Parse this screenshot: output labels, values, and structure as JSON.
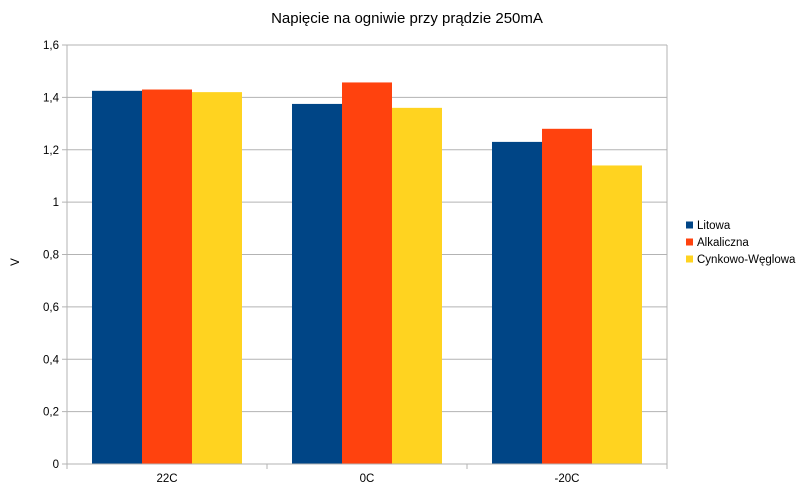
{
  "chart_data": {
    "type": "bar",
    "title": "Napięcie na ogniwie przy prądzie 250mA",
    "xlabel": "",
    "ylabel": "V",
    "categories": [
      "22C",
      "0C",
      "-20C"
    ],
    "series": [
      {
        "name": "Litowa",
        "color": "#004586",
        "values": [
          1.425,
          1.375,
          1.23
        ]
      },
      {
        "name": "Alkaliczna",
        "color": "#ff420e",
        "values": [
          1.43,
          1.457,
          1.28
        ]
      },
      {
        "name": "Cynkowo-Węglowa",
        "color": "#ffd320",
        "values": [
          1.42,
          1.36,
          1.14
        ]
      }
    ],
    "ylim": [
      0,
      1.6
    ],
    "yticks": [
      "0",
      "0,2",
      "0,4",
      "0,6",
      "0,8",
      "1",
      "1,2",
      "1,4",
      "1,6"
    ],
    "grid": true,
    "legend": "right"
  }
}
